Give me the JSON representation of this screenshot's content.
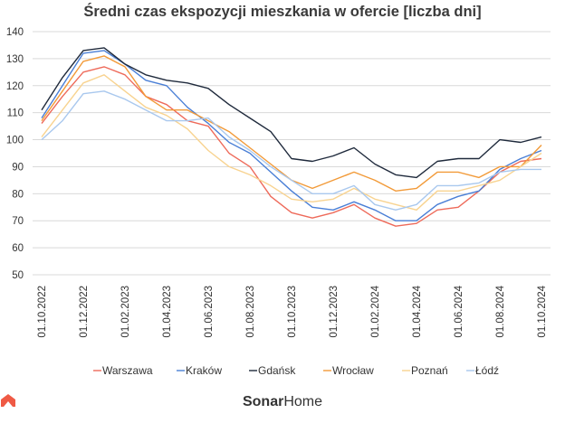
{
  "chart_data": {
    "type": "line",
    "title": "Średni czas ekspozycji mieszkania w ofercie [liczba dni]",
    "ylim": [
      50,
      140
    ],
    "yticks": [
      50,
      60,
      70,
      80,
      90,
      100,
      110,
      120,
      130,
      140
    ],
    "grid": true,
    "legend": "bottom",
    "x_tick_labels": [
      "01.10.2022",
      "01.12.2022",
      "01.02.2023",
      "01.04.2023",
      "01.06.2023",
      "01.08.2023",
      "01.10.2023",
      "01.12.2023",
      "01.02.2024",
      "01.04.2024",
      "01.06.2024",
      "01.08.2024",
      "01.10.2024"
    ],
    "x_months": [
      "2022-10",
      "2022-11",
      "2022-12",
      "2023-01",
      "2023-02",
      "2023-03",
      "2023-04",
      "2023-05",
      "2023-06",
      "2023-07",
      "2023-08",
      "2023-09",
      "2023-10",
      "2023-11",
      "2023-12",
      "2024-01",
      "2024-02",
      "2024-03",
      "2024-04",
      "2024-05",
      "2024-06",
      "2024-07",
      "2024-08",
      "2024-09",
      "2024-10"
    ],
    "series": [
      {
        "name": "Warszawa",
        "color": "#ee6a5a",
        "values": [
          106,
          116,
          125,
          127,
          124,
          116,
          113,
          107,
          105,
          95,
          90,
          79,
          73,
          71,
          73,
          76,
          71,
          68,
          69,
          74,
          75,
          81,
          88,
          92,
          93
        ]
      },
      {
        "name": "Kraków",
        "color": "#4a7fd6",
        "values": [
          108,
          120,
          132,
          133,
          128,
          122,
          120,
          112,
          106,
          99,
          95,
          88,
          81,
          75,
          74,
          77,
          74,
          70,
          70,
          76,
          79,
          81,
          89,
          93,
          96
        ]
      },
      {
        "name": "Gdańsk",
        "color": "#1f2a3c",
        "values": [
          111,
          123,
          133,
          134,
          128,
          124,
          122,
          121,
          119,
          113,
          108,
          103,
          93,
          92,
          94,
          97,
          91,
          87,
          86,
          92,
          93,
          93,
          100,
          99,
          101
        ]
      },
      {
        "name": "Wrocław",
        "color": "#f29a38",
        "values": [
          107,
          118,
          129,
          131,
          127,
          116,
          111,
          111,
          107,
          103,
          97,
          91,
          85,
          82,
          85,
          88,
          85,
          81,
          82,
          88,
          88,
          86,
          90,
          90,
          98
        ]
      },
      {
        "name": "Poznań",
        "color": "#f8d390",
        "values": [
          101,
          111,
          121,
          124,
          118,
          112,
          109,
          104,
          96,
          90,
          87,
          83,
          78,
          77,
          78,
          82,
          78,
          76,
          74,
          81,
          81,
          83,
          85,
          90,
          95
        ]
      },
      {
        "name": "Łódź",
        "color": "#a9c8ee",
        "values": [
          100,
          107,
          117,
          118,
          115,
          111,
          107,
          107,
          108,
          101,
          96,
          90,
          85,
          80,
          80,
          83,
          76,
          74,
          76,
          83,
          83,
          84,
          88,
          89,
          89
        ]
      }
    ]
  },
  "brand": {
    "name_bold": "Sonar",
    "name_light": "Home"
  }
}
